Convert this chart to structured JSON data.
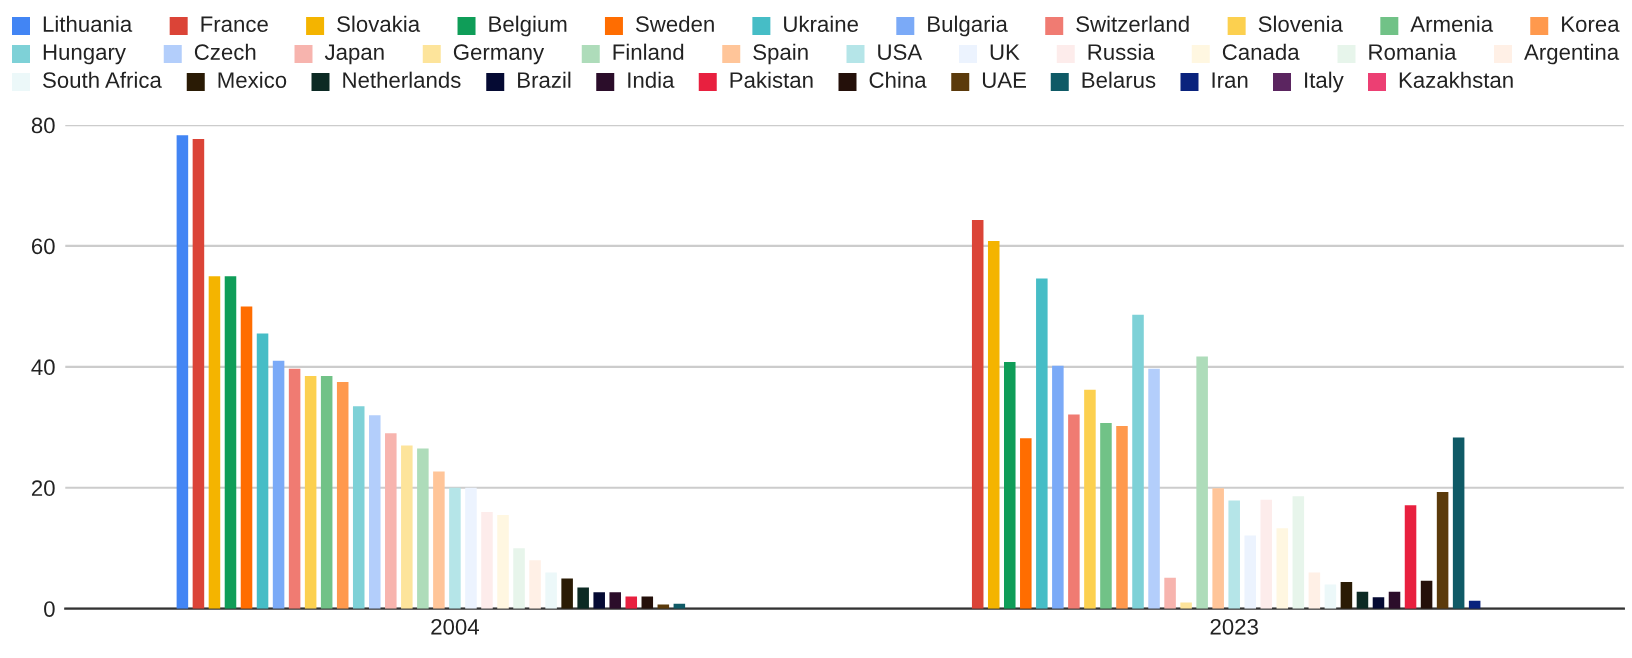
{
  "chart_data": {
    "type": "bar",
    "categories": [
      "2004",
      "2023"
    ],
    "ylim": [
      0,
      80
    ],
    "yticks": [
      0,
      20,
      40,
      60,
      80
    ],
    "grid": "y",
    "legend": "top",
    "series": [
      {
        "name": "Lithuania",
        "color": "#4285f4",
        "values": [
          78.3,
          null
        ]
      },
      {
        "name": "France",
        "color": "#db4437",
        "values": [
          77.7,
          64.3
        ]
      },
      {
        "name": "Slovakia",
        "color": "#f4b400",
        "values": [
          55,
          60.8
        ]
      },
      {
        "name": "Belgium",
        "color": "#0f9d58",
        "values": [
          55,
          40.8
        ]
      },
      {
        "name": "Sweden",
        "color": "#ff6d01",
        "values": [
          50,
          28.2
        ]
      },
      {
        "name": "Ukraine",
        "color": "#46bdc6",
        "values": [
          45.5,
          54.6
        ]
      },
      {
        "name": "Bulgaria",
        "color": "#7baaf7",
        "values": [
          41,
          40.2
        ]
      },
      {
        "name": "Switzerland",
        "color": "#f07b72",
        "values": [
          39.7,
          32.1
        ]
      },
      {
        "name": "Slovenia",
        "color": "#fcd04f",
        "values": [
          38.5,
          36.2
        ]
      },
      {
        "name": "Armenia",
        "color": "#71c287",
        "values": [
          38.5,
          30.7
        ]
      },
      {
        "name": "Korea",
        "color": "#ff994d",
        "values": [
          37.5,
          30.2
        ]
      },
      {
        "name": "Hungary",
        "color": "#7ed1d7",
        "values": [
          33.5,
          48.6
        ]
      },
      {
        "name": "Czech",
        "color": "#b3cefb",
        "values": [
          32,
          39.7
        ]
      },
      {
        "name": "Japan",
        "color": "#f7b4ae",
        "values": [
          29,
          5.1
        ]
      },
      {
        "name": "Germany",
        "color": "#fde49b",
        "values": [
          27,
          1
        ]
      },
      {
        "name": "Finland",
        "color": "#aedcba",
        "values": [
          26.5,
          41.7
        ]
      },
      {
        "name": "Spain",
        "color": "#ffc599",
        "values": [
          22.7,
          19.9
        ]
      },
      {
        "name": "USA",
        "color": "#b5e5e8",
        "values": [
          20,
          17.9
        ]
      },
      {
        "name": "UK",
        "color": "#ecf3fe",
        "values": [
          20,
          12.1
        ]
      },
      {
        "name": "Russia",
        "color": "#fdeceb",
        "values": [
          16,
          18
        ]
      },
      {
        "name": "Canada",
        "color": "#fff7e1",
        "values": [
          15.5,
          13.3
        ]
      },
      {
        "name": "Romania",
        "color": "#e7f5eb",
        "values": [
          10,
          18.6
        ]
      },
      {
        "name": "Argentina",
        "color": "#fff0e6",
        "values": [
          8,
          6
        ]
      },
      {
        "name": "South Africa",
        "color": "#ecf8f9",
        "values": [
          6,
          4
        ]
      },
      {
        "name": "Mexico",
        "color": "#2a1b05",
        "values": [
          5,
          4.4
        ]
      },
      {
        "name": "Netherlands",
        "color": "#0c2a24",
        "values": [
          3.5,
          2.8
        ]
      },
      {
        "name": "Brazil",
        "color": "#050a33",
        "values": [
          2.7,
          1.9
        ]
      },
      {
        "name": "India",
        "color": "#2b0d2a",
        "values": [
          2.7,
          2.8
        ]
      },
      {
        "name": "Pakistan",
        "color": "#e8203f",
        "values": [
          2,
          17.1
        ]
      },
      {
        "name": "China",
        "color": "#24100a",
        "values": [
          2,
          4.6
        ]
      },
      {
        "name": "UAE",
        "color": "#5b3a0b",
        "values": [
          0.7,
          19.3
        ]
      },
      {
        "name": "Belarus",
        "color": "#0f5a66",
        "values": [
          0.8,
          28.3
        ]
      },
      {
        "name": "Iran",
        "color": "#0a237d",
        "values": [
          null,
          1.3
        ]
      },
      {
        "name": "Italy",
        "color": "#5b2560",
        "values": [
          null,
          null
        ]
      },
      {
        "name": "Kazakhstan",
        "color": "#ec3f73",
        "values": [
          null,
          null
        ]
      }
    ]
  }
}
